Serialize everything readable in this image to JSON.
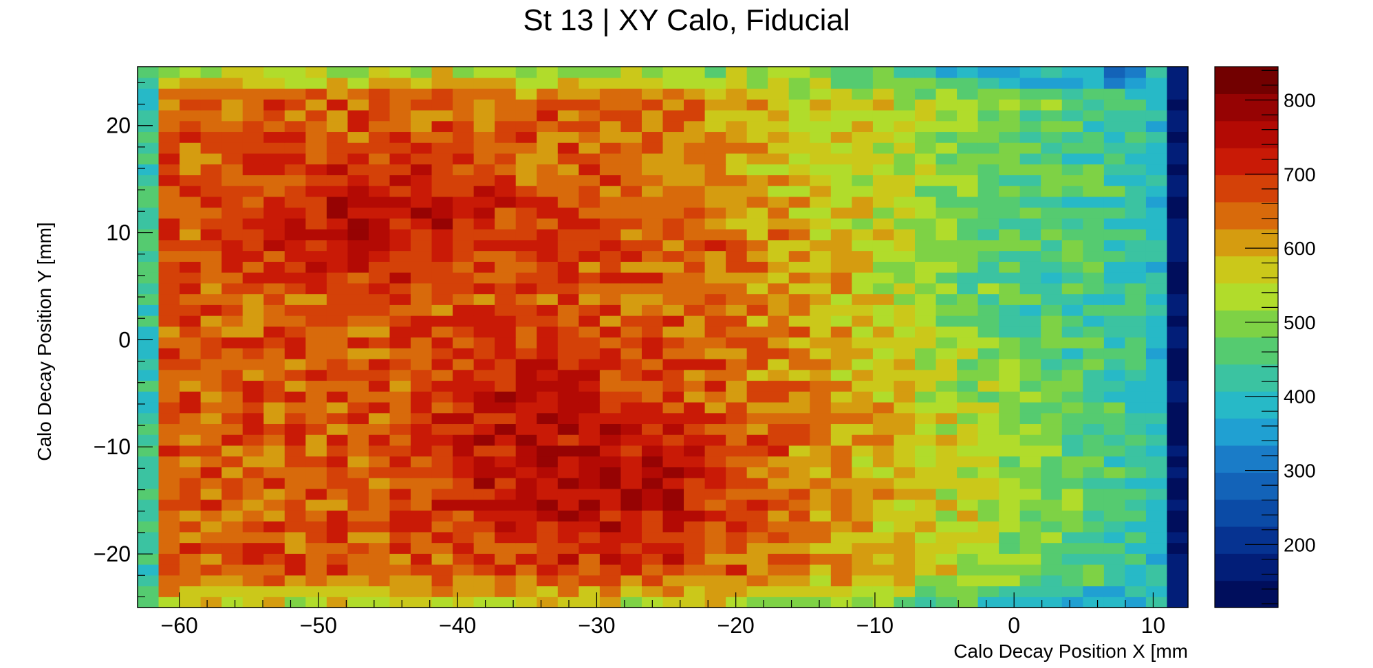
{
  "chart_data": {
    "type": "heatmap",
    "title": "St 13 | XY Calo, Fiducial",
    "xlabel": "Calo Decay Position X [mm",
    "ylabel": "Calo Decay Position Y [mm]",
    "xlim": [
      -63,
      12.5
    ],
    "ylim": [
      -25,
      25.5
    ],
    "zlim": [
      115,
      845
    ],
    "x_ticks": [
      -60,
      -50,
      -40,
      -30,
      -20,
      -10,
      0,
      10
    ],
    "y_ticks": [
      -20,
      -10,
      0,
      10,
      20
    ],
    "z_ticks": [
      200,
      300,
      400,
      500,
      600,
      700,
      800
    ],
    "bins": {
      "nx": 50,
      "ny": 50
    },
    "colormap": [
      "#000e5c",
      "#021e78",
      "#063391",
      "#0b4ba6",
      "#1363b8",
      "#1a7cc8",
      "#20a0d2",
      "#27b9c7",
      "#3bc3a1",
      "#55cb70",
      "#7ed245",
      "#b1dc2b",
      "#cbc81a",
      "#d59c10",
      "#d86a0b",
      "#d44108",
      "#c91a06",
      "#b30a04",
      "#960303",
      "#720000"
    ],
    "grid": false,
    "note_values": "counts per bin (visual estimate): ~450 at left edge, ~600-700 over x<-20 with peaks ~800 near y=-15 and y=10, falling to ~500-550 for x>-10, ~400 near x=10, last column ~150"
  }
}
